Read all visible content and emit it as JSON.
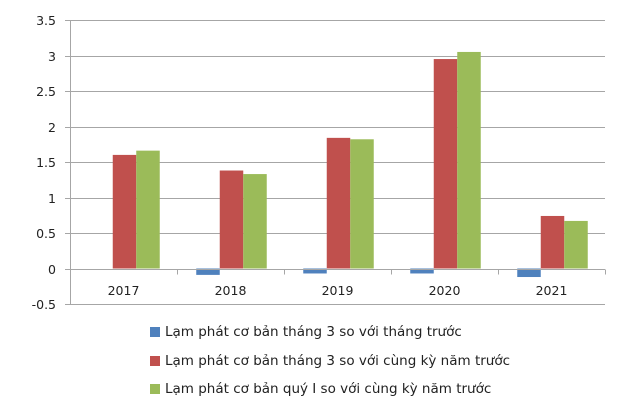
{
  "chart_data": {
    "type": "bar",
    "title": "",
    "xlabel": "",
    "ylabel": "",
    "ylim": [
      -0.5,
      3.5
    ],
    "yticks": [
      "3.5",
      "3",
      "2.5",
      "2",
      "1.5",
      "1",
      "0.5",
      "0",
      "-0.5"
    ],
    "ytick_values": [
      3.5,
      3,
      2.5,
      2,
      1.5,
      1,
      0.5,
      0,
      -0.5
    ],
    "grid": true,
    "legend_position": "bottom",
    "categories": [
      "2017",
      "2018",
      "2019",
      "2020",
      "2021"
    ],
    "series": [
      {
        "name": "Lạm phát cơ bản tháng 3 so với tháng trước",
        "color": "#4F81BD",
        "values": [
          0,
          -0.09,
          -0.07,
          -0.07,
          -0.12
        ]
      },
      {
        "name": "Lạm phát cơ bản tháng 3 so với cùng kỳ năm trước",
        "color": "#C0504D",
        "values": [
          1.6,
          1.38,
          1.84,
          2.95,
          0.74
        ]
      },
      {
        "name": "Lạm phát cơ bản quý I so với cùng kỳ năm trước",
        "color": "#9BBB59",
        "values": [
          1.66,
          1.33,
          1.82,
          3.05,
          0.67
        ]
      }
    ]
  },
  "legend": {
    "items": [
      {
        "label": "Lạm phát cơ bản tháng 3 so với tháng trước",
        "color": "#4F81BD"
      },
      {
        "label": "Lạm phát cơ bản tháng 3 so với cùng kỳ năm trước",
        "color": "#C0504D"
      },
      {
        "label": "Lạm phát cơ bản quý I so với cùng kỳ năm trước",
        "color": "#9BBB59"
      }
    ]
  }
}
